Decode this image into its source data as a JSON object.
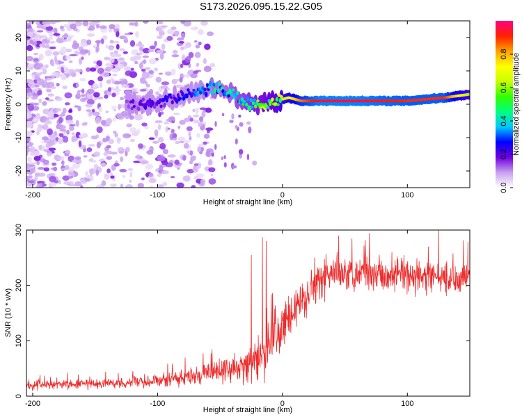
{
  "title": "S173.2026.095.15.22.G05",
  "chart_data": [
    {
      "type": "heatmap",
      "name": "spectrogram",
      "xlabel": "Height of straight line (km)",
      "ylabel": "Frequency (Hz)",
      "xlim": [
        -205,
        150
      ],
      "ylim": [
        -25,
        25
      ],
      "xticks": [
        -200,
        -100,
        0,
        100
      ],
      "yticks": [
        -20,
        -10,
        0,
        10,
        20
      ],
      "colorbar": {
        "label": "Normalized spectral amplitude",
        "range": [
          0,
          1
        ],
        "ticks": [
          "0.0",
          "0.2",
          "0.4",
          "0.6",
          "0.8"
        ],
        "colors": [
          "#ffffff",
          "#c8a0f0",
          "#7000e0",
          "#0000ff",
          "#00c8ff",
          "#00ff80",
          "#30ff00",
          "#c8ff00",
          "#ffff00",
          "#ffa000",
          "#ff2000",
          "#ff0080"
        ]
      },
      "ridge": {
        "x": [
          -125,
          -110,
          -95,
          -85,
          -75,
          -65,
          -55,
          -45,
          -35,
          -25,
          -15,
          -5,
          5,
          15,
          30,
          60,
          100,
          130,
          150
        ],
        "freq": [
          0,
          0,
          1,
          2,
          3,
          4,
          5,
          4,
          2,
          0,
          0,
          1,
          2,
          1,
          1,
          1,
          1,
          2,
          3
        ],
        "amplitude": [
          0.15,
          0.18,
          0.2,
          0.22,
          0.25,
          0.3,
          0.35,
          0.35,
          0.4,
          0.45,
          0.5,
          0.55,
          0.7,
          0.85,
          0.95,
          0.95,
          0.9,
          0.9,
          0.6
        ]
      },
      "noise_extent_x": [
        -205,
        -100
      ]
    },
    {
      "type": "line",
      "name": "snr",
      "xlabel": "Height of straight line (km)",
      "ylabel": "SNR (10 * v/v)",
      "xlim": [
        -205,
        150
      ],
      "ylim": [
        0,
        300
      ],
      "xticks": [
        -200,
        -100,
        0,
        100
      ],
      "yticks": [
        0,
        100,
        200,
        300
      ],
      "color": "#ee2a2a",
      "envelope": {
        "x": [
          -205,
          -150,
          -100,
          -80,
          -60,
          -40,
          -25,
          -15,
          -10,
          -5,
          0,
          5,
          10,
          15,
          20,
          25,
          30,
          40,
          50,
          70,
          90,
          110,
          130,
          150
        ],
        "mean": [
          20,
          22,
          28,
          33,
          42,
          50,
          58,
          70,
          90,
          110,
          125,
          140,
          150,
          170,
          185,
          200,
          210,
          220,
          225,
          225,
          220,
          215,
          215,
          215
        ],
        "spread": [
          10,
          10,
          13,
          16,
          20,
          25,
          30,
          40,
          50,
          55,
          50,
          45,
          40,
          40,
          40,
          40,
          40,
          35,
          35,
          35,
          35,
          35,
          35,
          30
        ]
      },
      "peaks": [
        {
          "x": -16,
          "y": 287
        },
        {
          "x": -13,
          "y": 280
        },
        {
          "x": -25,
          "y": 255
        },
        {
          "x": 125,
          "y": 305
        },
        {
          "x": 45,
          "y": 290
        }
      ]
    }
  ]
}
